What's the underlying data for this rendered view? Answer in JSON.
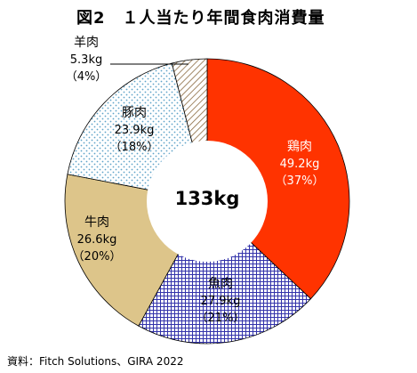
{
  "chart_data": {
    "type": "pie",
    "variant": "donut",
    "title": "図2　１人当たり年間食肉消費量",
    "center_label": "133kg",
    "unit": "kg",
    "slices": [
      {
        "name": "鶏肉",
        "value": 49.2,
        "value_label": "49.2kg",
        "percent_label": "（37%）",
        "color": "#ff3300",
        "pattern": "solid"
      },
      {
        "name": "魚肉",
        "value": 27.9,
        "value_label": "27.9kg",
        "percent_label": "（21%）",
        "color": "#3333aa",
        "pattern": "grid"
      },
      {
        "name": "牛肉",
        "value": 26.6,
        "value_label": "26.6kg",
        "percent_label": "（20%）",
        "color": "#ddc58a",
        "pattern": "solid"
      },
      {
        "name": "豚肉",
        "value": 23.9,
        "value_label": "23.9kg",
        "percent_label": "（18%）",
        "color": "#5fa3c8",
        "pattern": "dots"
      },
      {
        "name": "羊肉",
        "value": 5.3,
        "value_label": "5.3kg",
        "percent_label": "（4%）",
        "color": "#8a6a40",
        "pattern": "hatch"
      }
    ],
    "legend": "none",
    "source": "資料：Fitch Solutions、GIRA 2022"
  }
}
